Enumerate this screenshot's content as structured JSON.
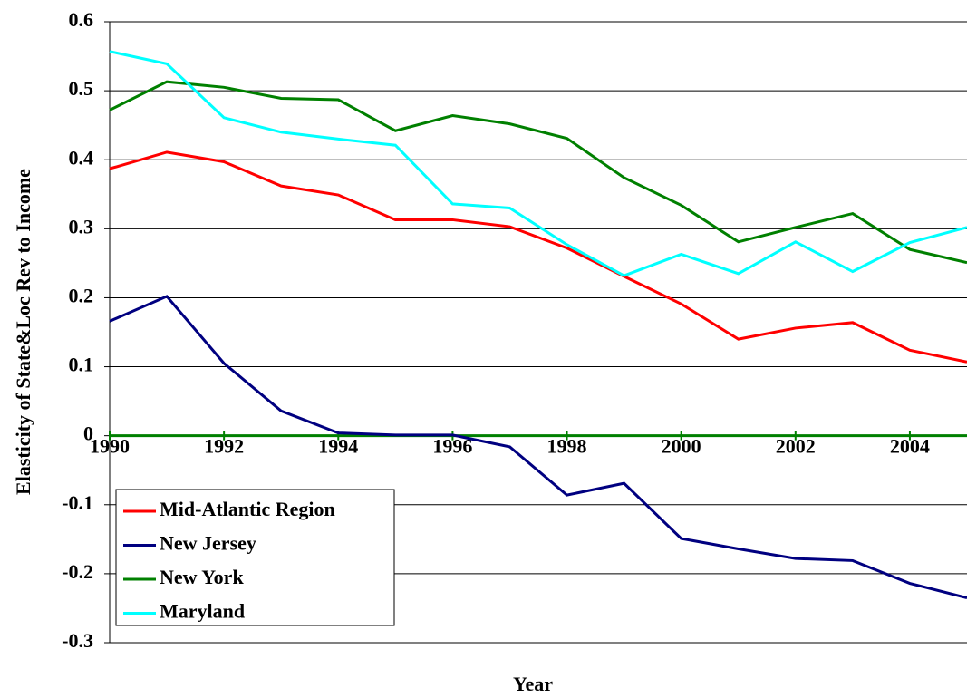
{
  "chart_data": {
    "type": "line",
    "x_label": "Year",
    "y_label": "Elasticity of State&Loc Rev to Income",
    "x": [
      1990,
      1991,
      1992,
      1993,
      1994,
      1995,
      1996,
      1997,
      1998,
      1999,
      2000,
      2001,
      2002,
      2003,
      2004,
      2005
    ],
    "series": [
      {
        "name": "Mid-Atlantic Region",
        "color": "#ff0000",
        "values": [
          0.387,
          0.411,
          0.397,
          0.362,
          0.349,
          0.313,
          0.313,
          0.303,
          0.272,
          0.231,
          0.191,
          0.14,
          0.156,
          0.164,
          0.124,
          0.107
        ]
      },
      {
        "name": "New Jersey",
        "color": "#000080",
        "values": [
          0.166,
          0.202,
          0.105,
          0.036,
          0.004,
          0.001,
          0.001,
          -0.016,
          -0.086,
          -0.069,
          -0.149,
          -0.164,
          -0.178,
          -0.181,
          -0.214,
          -0.235
        ]
      },
      {
        "name": "New York",
        "color": "#008000",
        "values": [
          0.472,
          0.513,
          0.505,
          0.489,
          0.487,
          0.442,
          0.464,
          0.452,
          0.431,
          0.374,
          0.334,
          0.281,
          0.302,
          0.322,
          0.27,
          0.251
        ]
      },
      {
        "name": "Maryland",
        "color": "#00ffff",
        "values": [
          0.557,
          0.539,
          0.461,
          0.44,
          0.43,
          0.421,
          0.336,
          0.33,
          0.277,
          0.232,
          0.263,
          0.235,
          0.281,
          0.238,
          0.28,
          0.302
        ]
      }
    ],
    "xlim": [
      1990,
      2005
    ],
    "xticks": [
      1990,
      1992,
      1994,
      1996,
      1998,
      2000,
      2002,
      2004
    ],
    "ylim": [
      -0.3,
      0.6
    ],
    "yticks": [
      -0.3,
      -0.2,
      -0.1,
      0,
      0.1,
      0.2,
      0.3,
      0.4,
      0.5,
      0.6
    ],
    "grid": true,
    "zero_line_color": "#008000",
    "legend_position": "lower left"
  }
}
